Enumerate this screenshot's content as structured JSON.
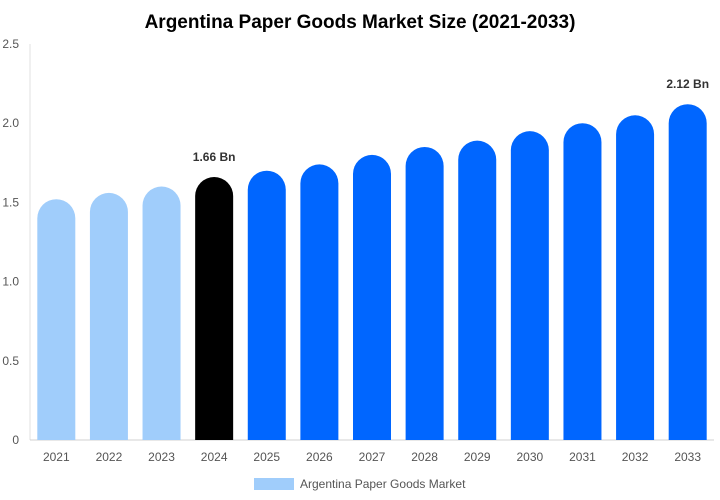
{
  "chart_data": {
    "type": "bar",
    "title": "Argentina Paper Goods Market Size (2021-2033)",
    "categories": [
      "2021",
      "2022",
      "2023",
      "2024",
      "2025",
      "2026",
      "2027",
      "2028",
      "2029",
      "2030",
      "2031",
      "2032",
      "2033"
    ],
    "series": [
      {
        "name": "Argentina Paper Goods Market",
        "values": [
          1.52,
          1.56,
          1.6,
          1.66,
          1.7,
          1.74,
          1.8,
          1.85,
          1.89,
          1.95,
          2.0,
          2.05,
          2.12
        ]
      }
    ],
    "ylim": [
      0,
      2.5
    ],
    "yticks": [
      "0",
      "0.5",
      "1.0",
      "1.5",
      "2.0",
      "2.5"
    ],
    "data_labels": [
      {
        "category": "2024",
        "text": "1.66 Bn"
      },
      {
        "category": "2033",
        "text": "2.12 Bn"
      }
    ],
    "bar_colors": {
      "historical": "#a0cdfb",
      "base_year": "#000000",
      "forecast": "#0066ff"
    },
    "base_year": "2024",
    "legend": {
      "label": "Argentina Paper Goods Market",
      "color": "#a0cdfb",
      "placement": "bottom"
    },
    "grid": false
  }
}
